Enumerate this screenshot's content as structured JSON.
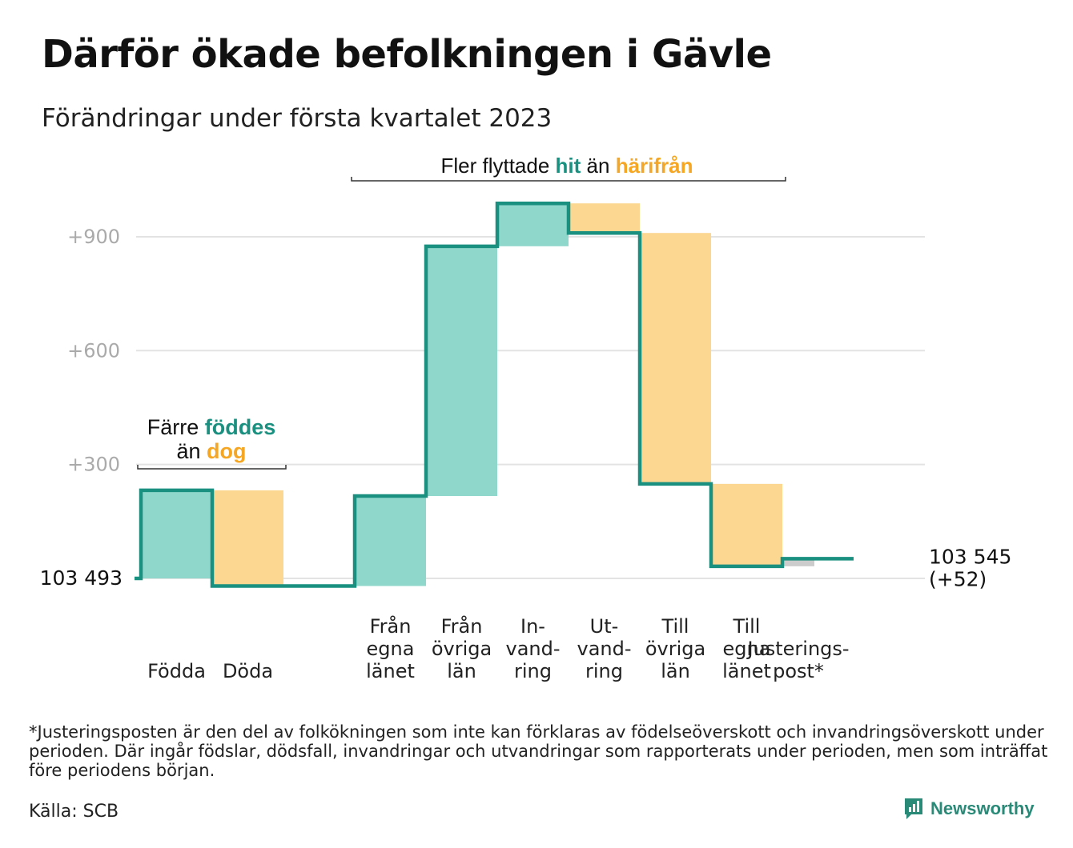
{
  "title": "Därför ökade befolkningen i Gävle",
  "subtitle": "Förändringar under första kvartalet 2023",
  "colors": {
    "teal": "#1a9080",
    "teal_light": "#8fd6cb",
    "orange": "#f5a623",
    "orange_light": "#fbd792",
    "grey": "#cccccc",
    "grid": "#e3e3e3"
  },
  "chart_data": {
    "type": "waterfall",
    "start": {
      "value": 0,
      "label": "103 493"
    },
    "end": {
      "value": 52,
      "label_line1": "103 545",
      "label_line2": "(+52)"
    },
    "y_ticks": [
      {
        "value": 300,
        "label": "+300"
      },
      {
        "value": 600,
        "label": "+600"
      },
      {
        "value": 900,
        "label": "+900"
      }
    ],
    "ylim": [
      -25,
      1000
    ],
    "steps": [
      {
        "label_lines": [
          "Födda"
        ],
        "change": 232,
        "kind": "increase"
      },
      {
        "label_lines": [
          "Döda"
        ],
        "change": -252,
        "kind": "decrease"
      },
      {
        "label_lines": [],
        "change": 0,
        "kind": "gap"
      },
      {
        "label_lines": [
          "Från",
          "egna",
          "länet"
        ],
        "change": 237,
        "kind": "increase"
      },
      {
        "label_lines": [
          "Från",
          "övriga",
          "län"
        ],
        "change": 658,
        "kind": "increase"
      },
      {
        "label_lines": [
          "In-",
          "vand-",
          "ring"
        ],
        "change": 113,
        "kind": "increase"
      },
      {
        "label_lines": [
          "Ut-",
          "vand-",
          "ring"
        ],
        "change": -78,
        "kind": "decrease"
      },
      {
        "label_lines": [
          "Till",
          "övriga",
          "län"
        ],
        "change": -661,
        "kind": "decrease"
      },
      {
        "label_lines": [
          "Till",
          "egna",
          "länet"
        ],
        "change": -217,
        "kind": "decrease"
      },
      {
        "label_lines": [
          "Justerings-",
          "post*"
        ],
        "change": 20,
        "kind": "adjustment"
      }
    ],
    "annotations": [
      {
        "line1": [
          {
            "text": "Färre ",
            "style": "plain"
          },
          {
            "text": "föddes",
            "style": "teal"
          }
        ],
        "line2": [
          {
            "text": "än ",
            "style": "plain"
          },
          {
            "text": "dog",
            "style": "orange"
          }
        ]
      },
      {
        "line1": [
          {
            "text": "Fler flyttade ",
            "style": "plain"
          },
          {
            "text": "hit",
            "style": "teal"
          },
          {
            "text": " än ",
            "style": "plain"
          },
          {
            "text": "härifrån",
            "style": "orange"
          }
        ]
      }
    ]
  },
  "footnote": "*Justeringsposten är den del av folkökningen som inte kan förklaras av födelseöverskott och invandringsöverskott under perioden. Där ingår födslar, dödsfall, invandringar och utvandringar som rapporterats under perioden, men som inträffat före periodens början.",
  "source": "Källa: SCB",
  "brand": "Newsworthy",
  "brand_icon": "newsworthy-logo-icon"
}
